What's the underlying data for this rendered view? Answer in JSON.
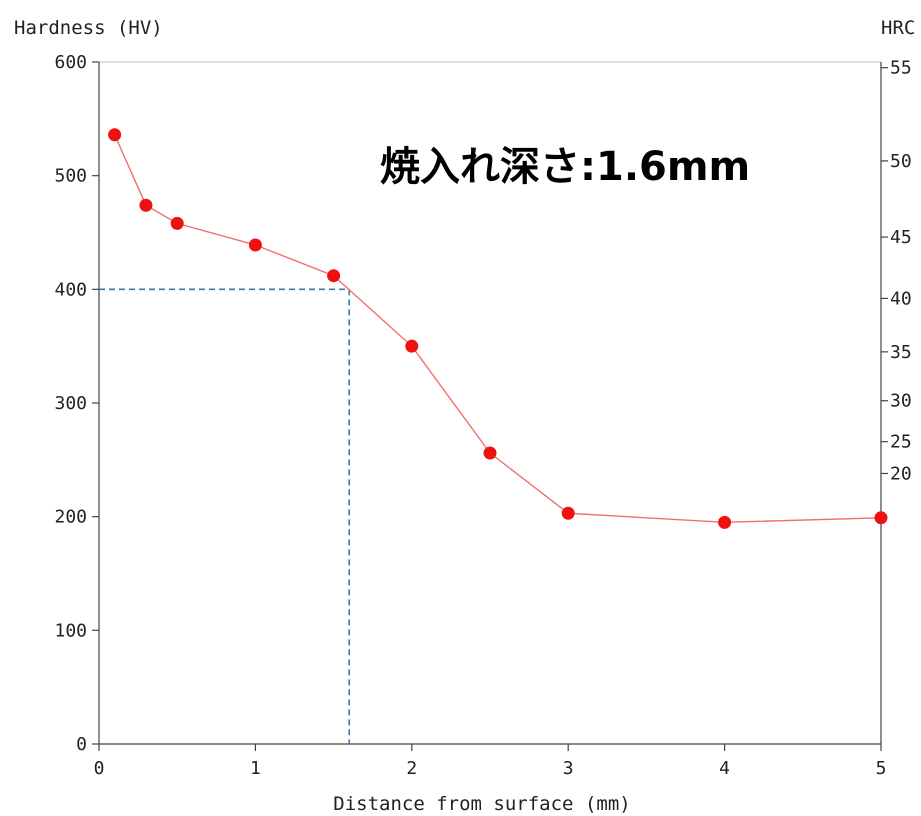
{
  "chart_data": {
    "type": "line",
    "title": "",
    "xlabel": "Distance from surface (mm)",
    "ylabel": "Hardness (HV)",
    "y2label": "HRC",
    "xlim": [
      0,
      5
    ],
    "ylim": [
      0,
      600
    ],
    "x_ticks": [
      0,
      1,
      2,
      3,
      4,
      5
    ],
    "y_ticks": [
      0,
      100,
      200,
      300,
      400,
      500,
      600
    ],
    "y2_ticks": [
      {
        "label": "55",
        "hv": 595
      },
      {
        "label": "50",
        "hv": 513
      },
      {
        "label": "45",
        "hv": 446
      },
      {
        "label": "40",
        "hv": 392
      },
      {
        "label": "35",
        "hv": 345
      },
      {
        "label": "30",
        "hv": 302
      },
      {
        "label": "25",
        "hv": 266
      },
      {
        "label": "20",
        "hv": 238
      }
    ],
    "series": [
      {
        "x": [
          0.1,
          0.3,
          0.5,
          1.0,
          1.5,
          2.0,
          2.5,
          3.0,
          4.0,
          5.0
        ],
        "y": [
          536,
          474,
          458,
          439,
          412,
          350,
          256,
          203,
          195,
          199
        ]
      }
    ],
    "reference_lines": {
      "hv": 400,
      "depth": 1.6
    },
    "annotation": "焼入れ深さ:1.6mm",
    "grid": false,
    "colors": {
      "line": "#f07070",
      "marker": "#ee1111",
      "reference": "#3a78b5",
      "axis": "#444444"
    }
  }
}
